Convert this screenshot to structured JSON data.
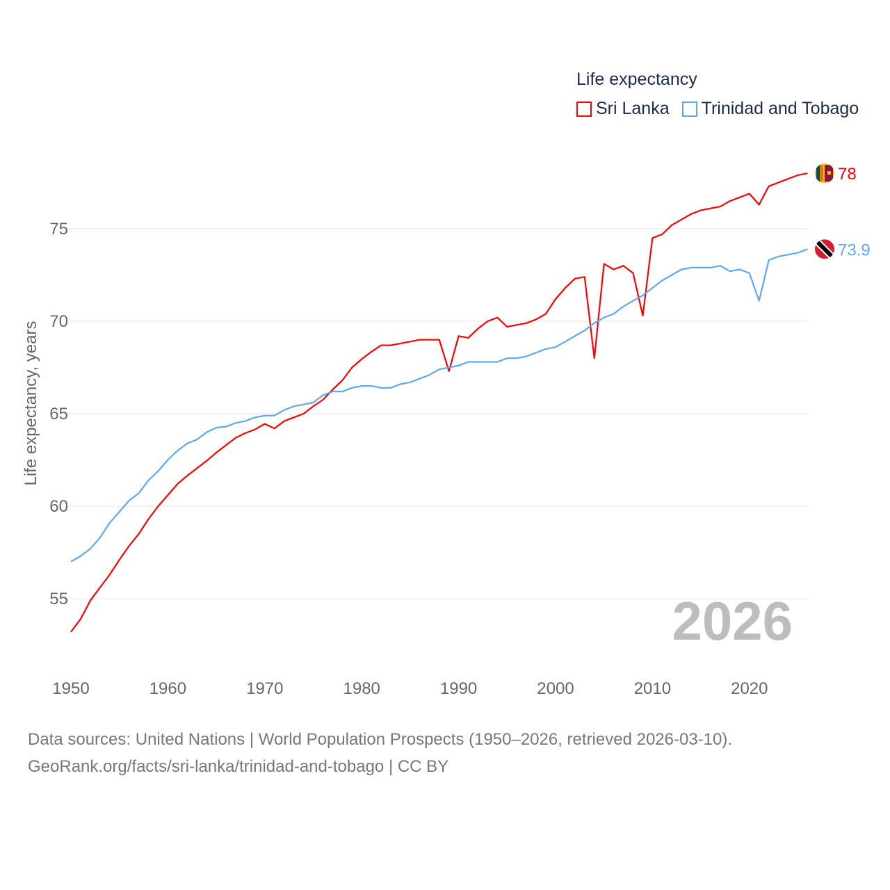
{
  "chart_data": {
    "type": "line",
    "title": "Life expectancy",
    "xlabel": "",
    "ylabel": "Life expectancy, years",
    "xlim": [
      1950,
      2026
    ],
    "ylim": [
      52,
      79
    ],
    "x_ticks": [
      "1950",
      "1960",
      "1970",
      "1980",
      "1990",
      "2000",
      "2010",
      "2020"
    ],
    "y_ticks": [
      "55",
      "60",
      "65",
      "70",
      "75"
    ],
    "grid": true,
    "legend_position": "top-right",
    "year_watermark": "2026",
    "x": [
      1950,
      1951,
      1952,
      1953,
      1954,
      1955,
      1956,
      1957,
      1958,
      1959,
      1960,
      1961,
      1962,
      1963,
      1964,
      1965,
      1966,
      1967,
      1968,
      1969,
      1970,
      1971,
      1972,
      1973,
      1974,
      1975,
      1976,
      1977,
      1978,
      1979,
      1980,
      1981,
      1982,
      1983,
      1984,
      1985,
      1986,
      1987,
      1988,
      1989,
      1990,
      1991,
      1992,
      1993,
      1994,
      1995,
      1996,
      1997,
      1998,
      1999,
      2000,
      2001,
      2002,
      2003,
      2004,
      2005,
      2006,
      2007,
      2008,
      2009,
      2010,
      2011,
      2012,
      2013,
      2014,
      2015,
      2016,
      2017,
      2018,
      2019,
      2020,
      2021,
      2022,
      2023,
      2024,
      2025,
      2026
    ],
    "series": [
      {
        "name": "Sri Lanka",
        "color": "#ff0000",
        "end_label": "78",
        "values": [
          53.2,
          53.9,
          54.9,
          55.6,
          56.3,
          57.1,
          57.85,
          58.5,
          59.3,
          60.0,
          60.6,
          61.2,
          61.65,
          62.05,
          62.45,
          62.9,
          63.3,
          63.7,
          63.95,
          64.15,
          64.45,
          64.2,
          64.6,
          64.8,
          65.0,
          65.4,
          65.75,
          66.3,
          66.8,
          67.5,
          67.95,
          68.35,
          68.7,
          68.7,
          68.8,
          68.9,
          69.0,
          69.0,
          69.0,
          67.3,
          69.2,
          69.1,
          69.6,
          70.0,
          70.2,
          69.7,
          69.8,
          69.9,
          70.1,
          70.4,
          71.2,
          71.8,
          72.3,
          72.4,
          68.0,
          73.1,
          72.8,
          73.0,
          72.6,
          70.3,
          74.5,
          74.7,
          75.2,
          75.5,
          75.8,
          76.0,
          76.1,
          76.2,
          76.5,
          76.7,
          76.9,
          76.3,
          77.3,
          77.5,
          77.7,
          77.9,
          78.0
        ]
      },
      {
        "name": "Trinidad and Tobago",
        "color": "#5fa8f0",
        "end_label": "73.9",
        "values": [
          57.0,
          57.3,
          57.7,
          58.3,
          59.1,
          59.7,
          60.3,
          60.7,
          61.4,
          61.9,
          62.5,
          63.0,
          63.4,
          63.6,
          64.0,
          64.25,
          64.3,
          64.5,
          64.6,
          64.8,
          64.9,
          64.9,
          65.2,
          65.4,
          65.5,
          65.6,
          66.0,
          66.2,
          66.2,
          66.4,
          66.5,
          66.5,
          66.4,
          66.4,
          66.6,
          66.7,
          66.9,
          67.1,
          67.4,
          67.5,
          67.6,
          67.8,
          67.8,
          67.8,
          67.8,
          68.0,
          68.0,
          68.1,
          68.3,
          68.5,
          68.6,
          68.9,
          69.2,
          69.5,
          69.9,
          70.2,
          70.4,
          70.8,
          71.1,
          71.4,
          71.8,
          72.2,
          72.5,
          72.8,
          72.9,
          72.9,
          72.9,
          73.0,
          72.7,
          72.8,
          72.6,
          71.1,
          73.3,
          73.5,
          73.6,
          73.7,
          73.9
        ]
      }
    ]
  },
  "source": {
    "line1": "Data sources: United Nations | World Population Prospects (1950–2026, retrieved 2026-03-10).",
    "line2": "GeoRank.org/facts/sri-lanka/trinidad-and-tobago | CC BY"
  }
}
